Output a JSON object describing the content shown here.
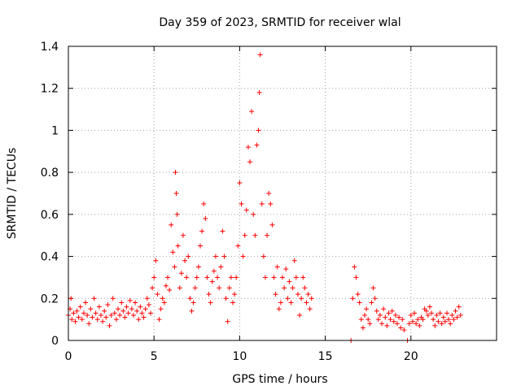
{
  "chart_data": {
    "type": "scatter",
    "title": "Day 359 of 2023, SRMTID for receiver wlal",
    "xlabel": "GPS time / hours",
    "ylabel": "SRMTID / TECUs",
    "xlim": [
      0,
      25
    ],
    "ylim": [
      0,
      1.4
    ],
    "x_ticks": [
      "0",
      "5",
      "10",
      "15",
      "20"
    ],
    "y_ticks": [
      "0",
      "0.2",
      "0.4",
      "0.6",
      "0.8",
      "1",
      "1.2",
      "1.4"
    ],
    "grid": true,
    "marker": "+",
    "color": "#ff0000",
    "series": [
      {
        "name": "wlal",
        "points": [
          [
            0.0,
            0.12
          ],
          [
            0.1,
            0.15
          ],
          [
            0.15,
            0.2
          ],
          [
            0.2,
            0.1
          ],
          [
            0.3,
            0.13
          ],
          [
            0.4,
            0.09
          ],
          [
            0.5,
            0.14
          ],
          [
            0.6,
            0.11
          ],
          [
            0.7,
            0.16
          ],
          [
            0.8,
            0.1
          ],
          [
            0.9,
            0.13
          ],
          [
            1.0,
            0.18
          ],
          [
            1.1,
            0.12
          ],
          [
            1.2,
            0.08
          ],
          [
            1.3,
            0.15
          ],
          [
            1.4,
            0.11
          ],
          [
            1.5,
            0.2
          ],
          [
            1.6,
            0.13
          ],
          [
            1.7,
            0.1
          ],
          [
            1.8,
            0.16
          ],
          [
            1.9,
            0.12
          ],
          [
            2.0,
            0.09
          ],
          [
            2.1,
            0.14
          ],
          [
            2.2,
            0.11
          ],
          [
            2.3,
            0.17
          ],
          [
            2.4,
            0.07
          ],
          [
            2.5,
            0.12
          ],
          [
            2.6,
            0.2
          ],
          [
            2.7,
            0.13
          ],
          [
            2.8,
            0.1
          ],
          [
            2.9,
            0.15
          ],
          [
            3.0,
            0.12
          ],
          [
            3.1,
            0.18
          ],
          [
            3.2,
            0.14
          ],
          [
            3.3,
            0.11
          ],
          [
            3.4,
            0.16
          ],
          [
            3.5,
            0.13
          ],
          [
            3.6,
            0.19
          ],
          [
            3.7,
            0.15
          ],
          [
            3.8,
            0.12
          ],
          [
            3.9,
            0.18
          ],
          [
            4.0,
            0.14
          ],
          [
            4.1,
            0.1
          ],
          [
            4.2,
            0.16
          ],
          [
            4.3,
            0.13
          ],
          [
            4.4,
            0.11
          ],
          [
            4.5,
            0.15
          ],
          [
            4.6,
            0.2
          ],
          [
            4.7,
            0.17
          ],
          [
            4.8,
            0.13
          ],
          [
            4.9,
            0.25
          ],
          [
            5.0,
            0.3
          ],
          [
            5.1,
            0.38
          ],
          [
            5.2,
            0.22
          ],
          [
            5.3,
            0.1
          ],
          [
            5.4,
            0.15
          ],
          [
            5.5,
            0.2
          ],
          [
            5.6,
            0.18
          ],
          [
            5.7,
            0.26
          ],
          [
            5.8,
            0.3
          ],
          [
            5.9,
            0.24
          ],
          [
            6.0,
            0.55
          ],
          [
            6.1,
            0.42
          ],
          [
            6.2,
            0.35
          ],
          [
            6.25,
            0.8
          ],
          [
            6.3,
            0.7
          ],
          [
            6.35,
            0.6
          ],
          [
            6.4,
            0.45
          ],
          [
            6.5,
            0.25
          ],
          [
            6.6,
            0.32
          ],
          [
            6.7,
            0.5
          ],
          [
            6.8,
            0.38
          ],
          [
            6.9,
            0.3
          ],
          [
            7.0,
            0.4
          ],
          [
            7.1,
            0.2
          ],
          [
            7.2,
            0.14
          ],
          [
            7.3,
            0.18
          ],
          [
            7.4,
            0.25
          ],
          [
            7.5,
            0.3
          ],
          [
            7.6,
            0.35
          ],
          [
            7.7,
            0.45
          ],
          [
            7.8,
            0.52
          ],
          [
            7.9,
            0.65
          ],
          [
            8.0,
            0.58
          ],
          [
            8.1,
            0.3
          ],
          [
            8.2,
            0.22
          ],
          [
            8.3,
            0.18
          ],
          [
            8.4,
            0.28
          ],
          [
            8.5,
            0.33
          ],
          [
            8.6,
            0.4
          ],
          [
            8.7,
            0.3
          ],
          [
            8.8,
            0.25
          ],
          [
            8.9,
            0.35
          ],
          [
            9.0,
            0.52
          ],
          [
            9.1,
            0.4
          ],
          [
            9.2,
            0.2
          ],
          [
            9.3,
            0.09
          ],
          [
            9.4,
            0.25
          ],
          [
            9.5,
            0.3
          ],
          [
            9.6,
            0.18
          ],
          [
            9.7,
            0.22
          ],
          [
            9.8,
            0.3
          ],
          [
            9.9,
            0.45
          ],
          [
            10.0,
            0.75
          ],
          [
            10.1,
            0.65
          ],
          [
            10.2,
            0.4
          ],
          [
            10.3,
            0.5
          ],
          [
            10.4,
            0.62
          ],
          [
            10.5,
            0.92
          ],
          [
            10.6,
            0.85
          ],
          [
            10.7,
            1.09
          ],
          [
            10.8,
            0.6
          ],
          [
            10.9,
            0.5
          ],
          [
            11.0,
            0.93
          ],
          [
            11.1,
            1.0
          ],
          [
            11.15,
            1.18
          ],
          [
            11.2,
            1.36
          ],
          [
            11.3,
            0.65
          ],
          [
            11.4,
            0.4
          ],
          [
            11.5,
            0.3
          ],
          [
            11.6,
            0.5
          ],
          [
            11.7,
            0.7
          ],
          [
            11.8,
            0.65
          ],
          [
            11.9,
            0.55
          ],
          [
            12.0,
            0.3
          ],
          [
            12.1,
            0.22
          ],
          [
            12.2,
            0.35
          ],
          [
            12.3,
            0.15
          ],
          [
            12.4,
            0.18
          ],
          [
            12.5,
            0.3
          ],
          [
            12.6,
            0.25
          ],
          [
            12.7,
            0.34
          ],
          [
            12.8,
            0.2
          ],
          [
            12.9,
            0.28
          ],
          [
            13.0,
            0.18
          ],
          [
            13.1,
            0.25
          ],
          [
            13.2,
            0.38
          ],
          [
            13.3,
            0.3
          ],
          [
            13.4,
            0.22
          ],
          [
            13.5,
            0.12
          ],
          [
            13.6,
            0.2
          ],
          [
            13.7,
            0.3
          ],
          [
            13.8,
            0.25
          ],
          [
            13.9,
            0.18
          ],
          [
            14.0,
            0.22
          ],
          [
            14.1,
            0.15
          ],
          [
            14.2,
            0.2
          ],
          [
            16.5,
            0.0
          ],
          [
            16.6,
            0.2
          ],
          [
            16.7,
            0.35
          ],
          [
            16.8,
            0.3
          ],
          [
            16.9,
            0.22
          ],
          [
            17.0,
            0.18
          ],
          [
            17.1,
            0.1
          ],
          [
            17.2,
            0.06
          ],
          [
            17.3,
            0.12
          ],
          [
            17.4,
            0.15
          ],
          [
            17.5,
            0.1
          ],
          [
            17.6,
            0.08
          ],
          [
            17.7,
            0.18
          ],
          [
            17.8,
            0.25
          ],
          [
            17.9,
            0.2
          ],
          [
            18.0,
            0.14
          ],
          [
            18.1,
            0.1
          ],
          [
            18.2,
            0.12
          ],
          [
            18.3,
            0.08
          ],
          [
            18.4,
            0.15
          ],
          [
            18.5,
            0.11
          ],
          [
            18.6,
            0.07
          ],
          [
            18.7,
            0.13
          ],
          [
            18.8,
            0.1
          ],
          [
            18.9,
            0.14
          ],
          [
            19.0,
            0.09
          ],
          [
            19.1,
            0.12
          ],
          [
            19.2,
            0.08
          ],
          [
            19.3,
            0.11
          ],
          [
            19.4,
            0.06
          ],
          [
            19.5,
            0.1
          ],
          [
            19.6,
            0.05
          ],
          [
            19.8,
            0.0
          ],
          [
            19.9,
            0.08
          ],
          [
            20.0,
            0.12
          ],
          [
            20.1,
            0.09
          ],
          [
            20.2,
            0.13
          ],
          [
            20.3,
            0.08
          ],
          [
            20.4,
            0.1
          ],
          [
            20.5,
            0.07
          ],
          [
            20.6,
            0.11
          ],
          [
            20.7,
            0.1
          ],
          [
            20.8,
            0.15
          ],
          [
            20.9,
            0.14
          ],
          [
            21.0,
            0.12
          ],
          [
            21.1,
            0.16
          ],
          [
            21.2,
            0.13
          ],
          [
            21.3,
            0.1
          ],
          [
            21.4,
            0.07
          ],
          [
            21.5,
            0.12
          ],
          [
            21.6,
            0.09
          ],
          [
            21.7,
            0.13
          ],
          [
            21.8,
            0.08
          ],
          [
            21.9,
            0.11
          ],
          [
            22.0,
            0.09
          ],
          [
            22.1,
            0.13
          ],
          [
            22.2,
            0.1
          ],
          [
            22.3,
            0.08
          ],
          [
            22.4,
            0.12
          ],
          [
            22.5,
            0.1
          ],
          [
            22.6,
            0.14
          ],
          [
            22.7,
            0.11
          ],
          [
            22.8,
            0.16
          ],
          [
            22.9,
            0.12
          ]
        ]
      }
    ]
  }
}
